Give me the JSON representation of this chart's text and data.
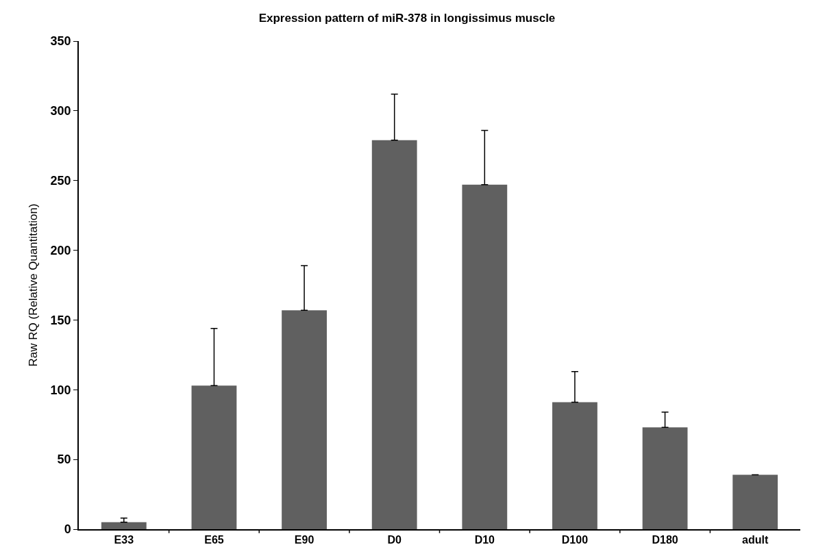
{
  "chart_data": {
    "type": "bar",
    "title": "Expression pattern of miR-378 in longissimus muscle",
    "ylabel": "Raw RQ (Relative Quantitation)",
    "categories": [
      "E33",
      "E65",
      "E90",
      "D0",
      "D10",
      "D100",
      "D180",
      "adult"
    ],
    "values": [
      5,
      103,
      157,
      279,
      247,
      91,
      73,
      39
    ],
    "errors": [
      [
        5,
        8
      ],
      [
        103,
        144
      ],
      [
        157,
        189
      ],
      [
        279,
        312
      ],
      [
        247,
        286
      ],
      [
        91,
        113
      ],
      [
        73,
        84
      ],
      [
        39,
        39
      ]
    ],
    "color": "#606060",
    "ylim": [
      0,
      350
    ],
    "yticks": [
      0,
      50,
      100,
      150,
      200,
      250,
      300,
      350
    ],
    "grid": false
  }
}
